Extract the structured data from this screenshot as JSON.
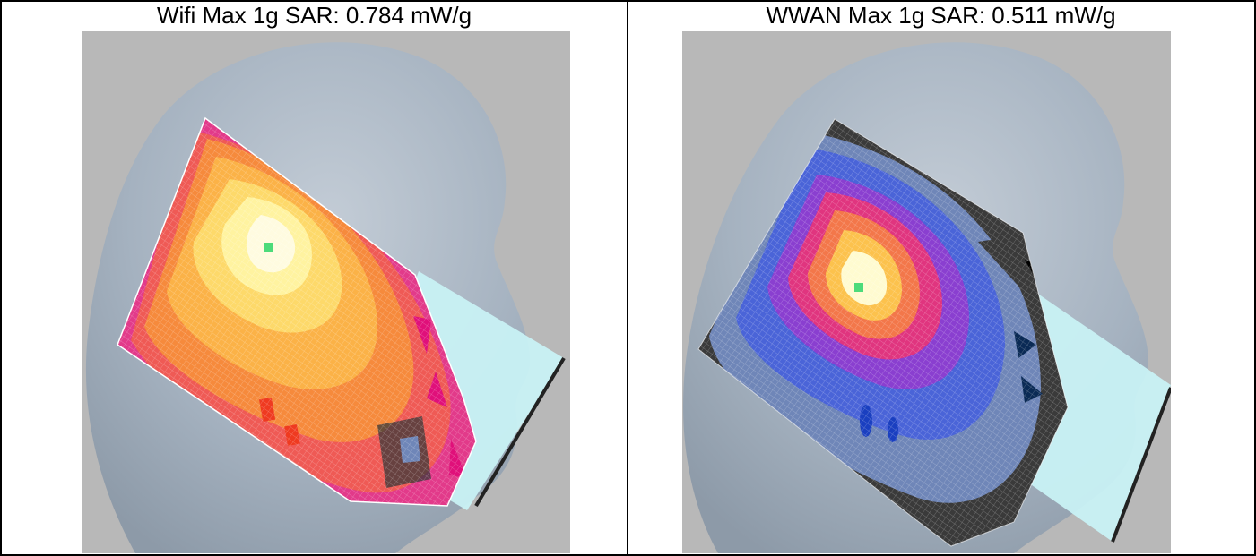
{
  "panels": [
    {
      "caption": "Wifi Max 1g SAR: 0.784 mW/g",
      "colormap": [
        "#e23a8a",
        "#ef5a55",
        "#f68a3c",
        "#fbb247",
        "#fdd96a",
        "#fff3a0",
        "#fffbe0"
      ],
      "peak_marker_color": "#4ddb7a"
    },
    {
      "caption": "WWAN Max 1g SAR: 0.511 mW/g",
      "colormap": [
        "#3a3a3a",
        "#6f86b8",
        "#4a64d8",
        "#8a3fd0",
        "#e0357f",
        "#f3774a",
        "#fcc24d",
        "#fffbd0"
      ],
      "peak_marker_color": "#4ddb7a"
    }
  ],
  "colors": {
    "background_gray": "#b8b8b8",
    "head": "#a9b6c4",
    "phone": "#c8f1f4",
    "border": "#000000"
  }
}
